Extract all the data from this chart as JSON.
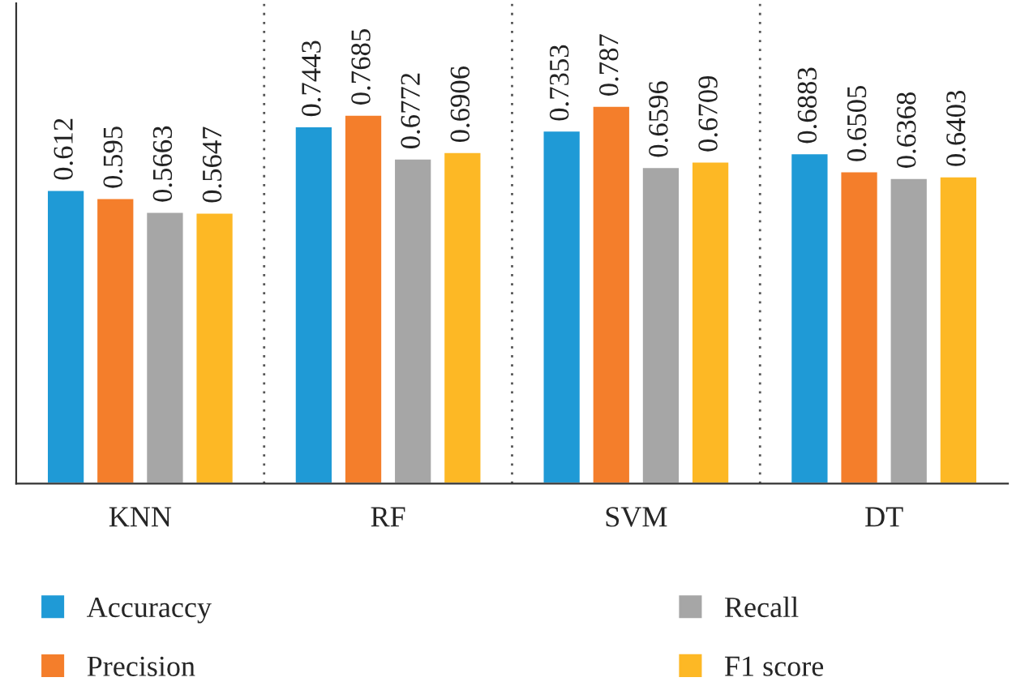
{
  "chart_data": {
    "type": "bar",
    "categories": [
      "KNN",
      "RF",
      "SVM",
      "DT"
    ],
    "series": [
      {
        "name": "Accuraccy",
        "color": "#1f9ad6",
        "values": [
          0.612,
          0.7443,
          0.7353,
          0.6883
        ]
      },
      {
        "name": "Precision",
        "color": "#f47e2b",
        "values": [
          0.595,
          0.7685,
          0.787,
          0.6505
        ]
      },
      {
        "name": "Recall",
        "color": "#a6a6a6",
        "values": [
          0.5663,
          0.6772,
          0.6596,
          0.6368
        ]
      },
      {
        "name": "F1 score",
        "color": "#fdb825",
        "values": [
          0.5647,
          0.6906,
          0.6709,
          0.6403
        ]
      }
    ],
    "ylim": [
      0,
      1.0
    ],
    "tick_labels": "x",
    "data_labels": true,
    "grid": "x",
    "legend": "bottom"
  }
}
